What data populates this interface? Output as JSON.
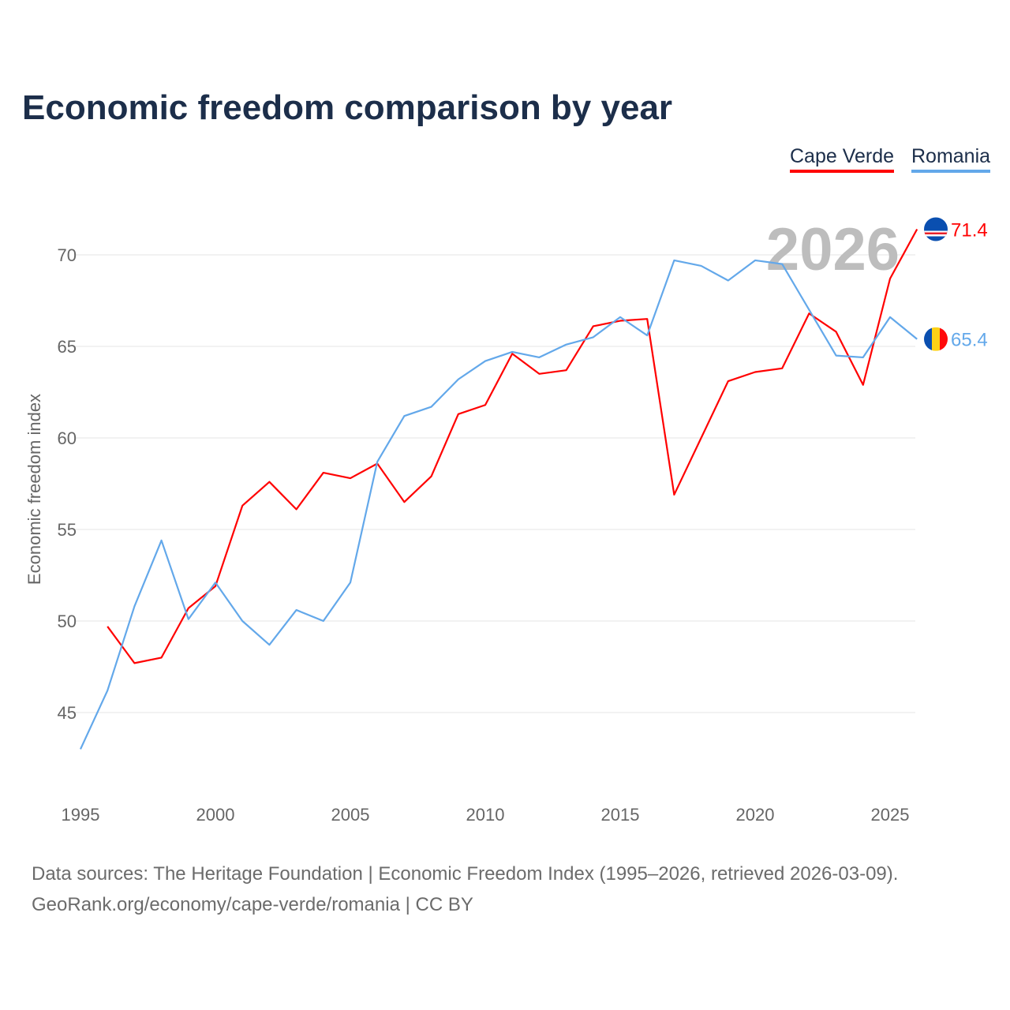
{
  "chart_data": {
    "type": "line",
    "title": "Economic freedom comparison by year",
    "xlabel": "",
    "ylabel": "Economic freedom index",
    "xlim": [
      1995,
      2026
    ],
    "ylim": [
      41.5,
      72.8
    ],
    "x_ticks": [
      1995,
      2000,
      2005,
      2010,
      2015,
      2020,
      2025
    ],
    "y_ticks": [
      45,
      50,
      55,
      60,
      65,
      70
    ],
    "grid": true,
    "legend_position": "top-right",
    "current_year_label": "2026",
    "series": [
      {
        "name": "Cape Verde",
        "color": "#ff0000",
        "end_label": "71.4",
        "flag": "cape-verde-flag",
        "x": [
          1996,
          1997,
          1998,
          1999,
          2000,
          2001,
          2002,
          2003,
          2004,
          2005,
          2006,
          2007,
          2008,
          2009,
          2010,
          2011,
          2012,
          2013,
          2014,
          2015,
          2016,
          2017,
          2018,
          2019,
          2020,
          2021,
          2022,
          2023,
          2024,
          2025,
          2026
        ],
        "values": [
          49.7,
          47.7,
          48.0,
          50.7,
          51.9,
          56.3,
          57.6,
          56.1,
          58.1,
          57.8,
          58.6,
          56.5,
          57.9,
          61.3,
          61.8,
          64.6,
          63.5,
          63.7,
          66.1,
          66.4,
          66.5,
          56.9,
          60.0,
          63.1,
          63.6,
          63.8,
          66.8,
          65.8,
          62.9,
          68.7,
          71.4
        ]
      },
      {
        "name": "Romania",
        "color": "#63a8ea",
        "end_label": "65.4",
        "flag": "romania-flag",
        "x": [
          1995,
          1996,
          1997,
          1998,
          1999,
          2000,
          2001,
          2002,
          2003,
          2004,
          2005,
          2006,
          2007,
          2008,
          2009,
          2010,
          2011,
          2012,
          2013,
          2014,
          2015,
          2016,
          2017,
          2018,
          2019,
          2020,
          2021,
          2022,
          2023,
          2024,
          2025,
          2026
        ],
        "values": [
          43.0,
          46.2,
          50.8,
          54.4,
          50.1,
          52.1,
          50.0,
          48.7,
          50.6,
          50.0,
          52.1,
          58.7,
          61.2,
          61.7,
          63.2,
          64.2,
          64.7,
          64.4,
          65.1,
          65.5,
          66.6,
          65.6,
          69.7,
          69.4,
          68.6,
          69.7,
          69.5,
          67.0,
          64.5,
          64.4,
          66.6,
          65.4
        ]
      }
    ]
  },
  "source_line1": "Data sources: The Heritage Foundation | Economic Freedom Index (1995–2026, retrieved 2026-03-09).",
  "source_line2": "GeoRank.org/economy/cape-verde/romania | CC BY"
}
